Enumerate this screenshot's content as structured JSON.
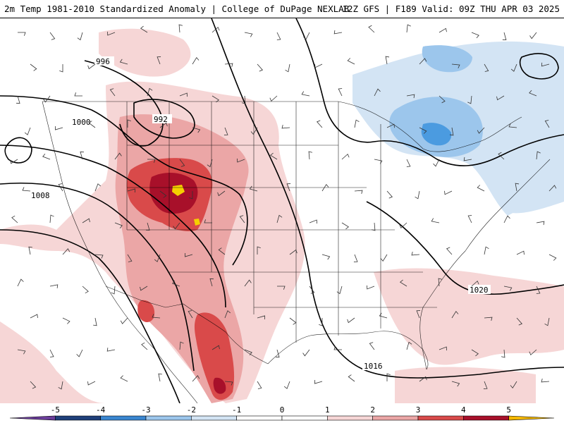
{
  "header": {
    "left_title": "2m Temp 1981-2010 Standardized Anomaly | College of DuPage NEXLAB",
    "right_title": "12Z GFS | F189 Valid: 09Z THU APR 03 2025"
  },
  "map": {
    "isobar_labels": [
      "996",
      "1000",
      "992",
      "1008",
      "1020",
      "1016"
    ],
    "colors": {
      "warm_light": "#f6d6d6",
      "warm_mid": "#eba6a6",
      "warm_strong": "#d94a4a",
      "warm_extreme": "#a8102a",
      "warm_max": "#f5d000",
      "cold_light": "#d3e4f4",
      "cold_mid": "#9cc6ec",
      "cold_strong": "#4b9be0"
    }
  },
  "colorbar": {
    "tick_labels": [
      "-5",
      "-4",
      "-3",
      "-2",
      "-1",
      "0",
      "1",
      "2",
      "3",
      "4",
      "5"
    ],
    "segment_colors": [
      "#6a3d9a",
      "#1f3f7a",
      "#3a86d0",
      "#9cc6ec",
      "#d3e4f4",
      "#ffffff",
      "#ffffff",
      "#f6d6d6",
      "#eba6a6",
      "#d94a4a",
      "#a8102a",
      "#f5b800"
    ]
  }
}
